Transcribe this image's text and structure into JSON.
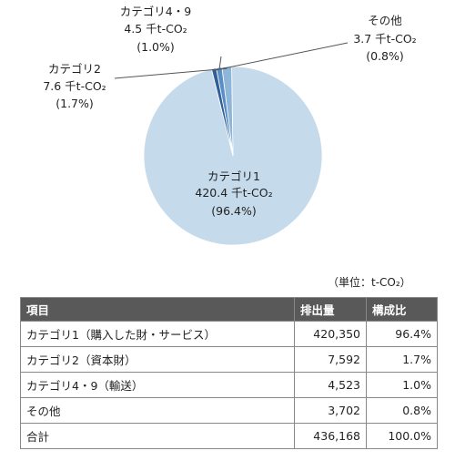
{
  "chart_data": {
    "type": "pie",
    "categories": [
      "カテゴリ1",
      "カテゴリ2",
      "カテゴリ4・9",
      "その他"
    ],
    "values": [
      420.4,
      7.6,
      4.5,
      3.7
    ],
    "value_labels": [
      "420.4 千t-CO₂",
      "7.6 千t-CO₂",
      "4.5 千t-CO₂",
      "3.7 千t-CO₂"
    ],
    "percent_labels": [
      "(96.4%)",
      "(1.7%)",
      "(1.0%)",
      "(0.8%)"
    ],
    "colors": [
      "#c5daea",
      "#8eb6d9",
      "#5b8ec4",
      "#2f5f98"
    ]
  },
  "unit_note": "（単位：t-CO₂）",
  "table": {
    "headers": [
      "項目",
      "排出量",
      "構成比"
    ],
    "rows": [
      [
        "カテゴリ1（購入した財・サービス）",
        "420,350",
        "96.4%"
      ],
      [
        "カテゴリ2（資本財）",
        "7,592",
        "1.7%"
      ],
      [
        "カテゴリ4・9（輸送）",
        "4,523",
        "1.0%"
      ],
      [
        "その他",
        "3,702",
        "0.8%"
      ],
      [
        "合計",
        "436,168",
        "100.0%"
      ]
    ]
  }
}
